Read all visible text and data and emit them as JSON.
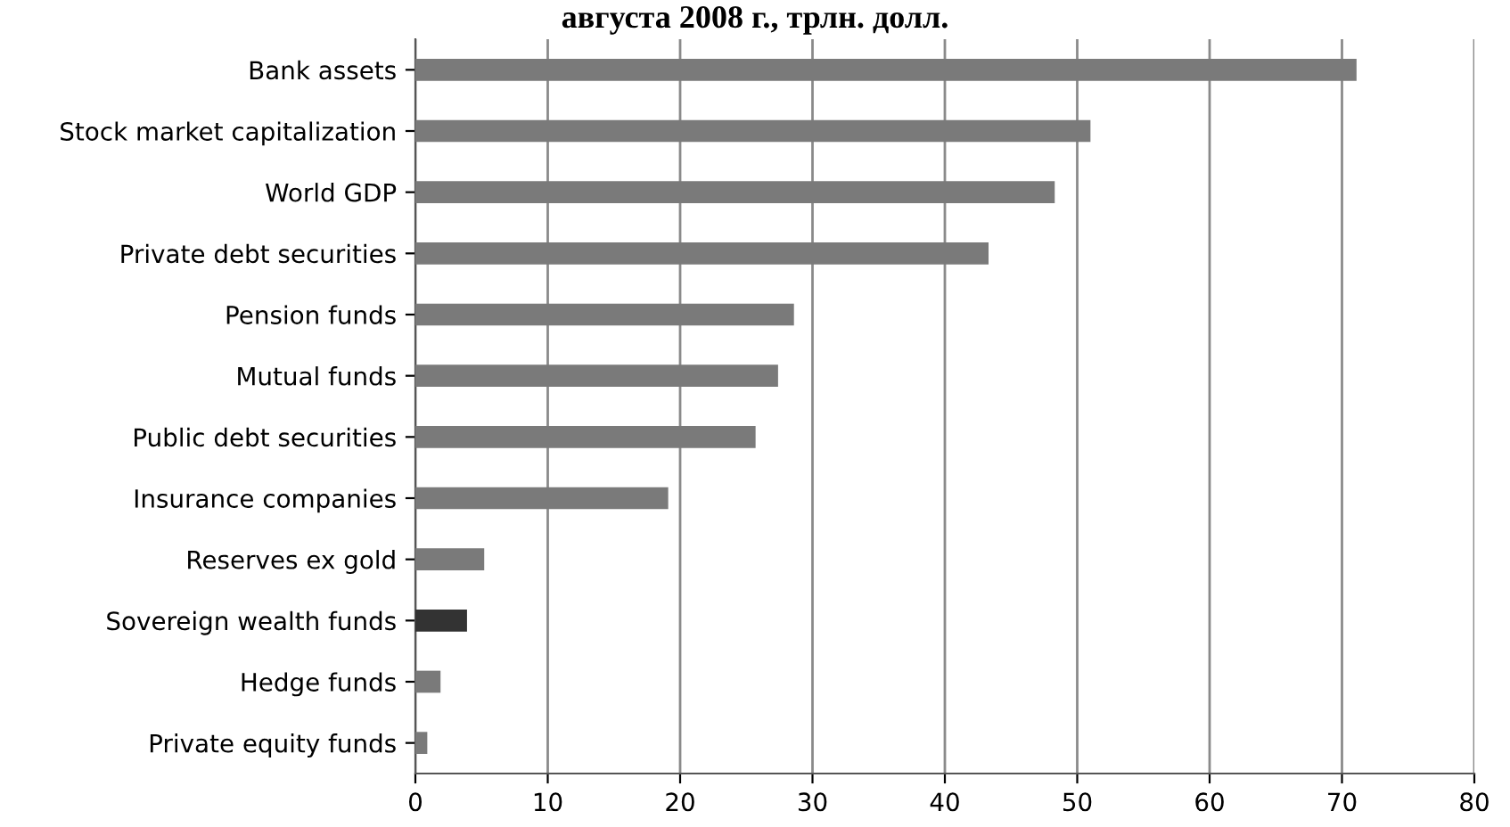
{
  "chart_data": {
    "type": "bar",
    "orientation": "horizontal",
    "title": "августа 2008 г., трлн. долл.",
    "categories": [
      "Bank assets",
      "Stock market capitalization",
      "World GDP",
      "Private debt securities",
      "Pension funds",
      "Mutual funds",
      "Public debt securities",
      "Insurance companies",
      "Reserves ex gold",
      "Sovereign wealth funds",
      "Hedge funds",
      "Private equity funds"
    ],
    "values": [
      71.1,
      51.0,
      48.3,
      43.3,
      28.6,
      27.4,
      25.7,
      19.1,
      5.2,
      3.9,
      1.9,
      0.9
    ],
    "colors": [
      "#7a7a7a",
      "#7a7a7a",
      "#7a7a7a",
      "#7a7a7a",
      "#7a7a7a",
      "#7a7a7a",
      "#7a7a7a",
      "#7a7a7a",
      "#7a7a7a",
      "#333333",
      "#7a7a7a",
      "#7a7a7a"
    ],
    "xlim": [
      0,
      80
    ],
    "xticks": [
      0,
      10,
      20,
      30,
      40,
      50,
      60,
      70,
      80
    ],
    "grid": "x",
    "legend": false
  }
}
